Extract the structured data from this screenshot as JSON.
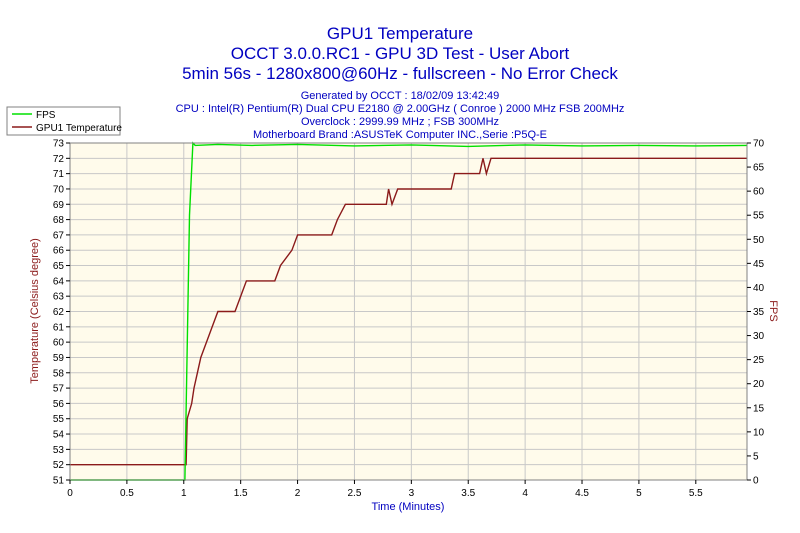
{
  "header": {
    "title_line1": "GPU1 Temperature",
    "title_line2": "OCCT 3.0.0.RC1 - GPU 3D Test - User Abort",
    "title_line3": "5min 56s - 1280x800@60Hz - fullscreen - No Error Check",
    "info_line1": "Generated by OCCT : 18/02/09 13:42:49",
    "info_line2": "CPU : Intel(R) Pentium(R) Dual CPU E2180 @ 2.00GHz ( Conroe ) 2000 MHz FSB 200MHz",
    "info_line3": "Overclock : 2999.99 MHz ; FSB 300MHz",
    "info_line4": "Motherboard Brand :ASUSTeK Computer INC.,Serie :P5Q-E"
  },
  "colors": {
    "plot_background": "#fffbeb",
    "grid": "#c8c8c8",
    "title": "#0000c0",
    "info": "#0000c0",
    "temperature_series": "#8b1a1a",
    "fps_series": "#00e000",
    "left_axis_label": "#8b1a1a",
    "right_axis_label": "#8b1a1a",
    "x_axis_label": "#0000c0",
    "frame": "#808080"
  },
  "chart_data": {
    "type": "line",
    "xlabel": "Time (Minutes)",
    "ylabel_left": "Temperature (Celsius degree)",
    "ylabel_right": "FPS",
    "xlim": [
      0,
      5.95
    ],
    "ylim_left": [
      51,
      73
    ],
    "ylim_right": [
      0,
      70
    ],
    "x_ticks": [
      "0",
      "0.5",
      "1",
      "1.5",
      "2",
      "2.5",
      "3",
      "3.5",
      "4",
      "4.5",
      "5",
      "5.5"
    ],
    "x_tick_values": [
      0,
      0.5,
      1,
      1.5,
      2,
      2.5,
      3,
      3.5,
      4,
      4.5,
      5,
      5.5
    ],
    "y_left_ticks": [
      "51",
      "52",
      "53",
      "54",
      "55",
      "56",
      "57",
      "58",
      "59",
      "60",
      "61",
      "62",
      "63",
      "64",
      "65",
      "66",
      "67",
      "68",
      "69",
      "70",
      "71",
      "72",
      "73"
    ],
    "y_right_ticks": [
      "0",
      "5",
      "10",
      "15",
      "20",
      "25",
      "30",
      "35",
      "40",
      "45",
      "50",
      "55",
      "60",
      "65",
      "70"
    ],
    "grid": true,
    "legend_position": "top-left",
    "legend": [
      "FPS",
      "GPU1 Temperature"
    ],
    "series": [
      {
        "name": "GPU1 Temperature",
        "axis": "left",
        "points": [
          [
            0,
            52
          ],
          [
            1.02,
            52
          ],
          [
            1.03,
            55
          ],
          [
            1.07,
            56
          ],
          [
            1.09,
            57
          ],
          [
            1.12,
            58
          ],
          [
            1.15,
            59
          ],
          [
            1.2,
            60
          ],
          [
            1.25,
            61
          ],
          [
            1.3,
            62
          ],
          [
            1.45,
            62
          ],
          [
            1.5,
            63
          ],
          [
            1.55,
            64
          ],
          [
            1.8,
            64
          ],
          [
            1.85,
            65
          ],
          [
            1.95,
            66
          ],
          [
            2.0,
            67
          ],
          [
            2.3,
            67
          ],
          [
            2.35,
            68
          ],
          [
            2.42,
            69
          ],
          [
            2.78,
            69
          ],
          [
            2.8,
            70
          ],
          [
            2.83,
            69
          ],
          [
            2.88,
            70
          ],
          [
            3.35,
            70
          ],
          [
            3.38,
            71
          ],
          [
            3.6,
            71
          ],
          [
            3.63,
            72
          ],
          [
            3.66,
            71
          ],
          [
            3.7,
            72
          ],
          [
            5.95,
            72
          ]
        ]
      },
      {
        "name": "FPS",
        "axis": "right",
        "points": [
          [
            0,
            0
          ],
          [
            1.01,
            0
          ],
          [
            1.05,
            55
          ],
          [
            1.08,
            70
          ],
          [
            1.1,
            69.5
          ],
          [
            1.3,
            69.7
          ],
          [
            1.6,
            69.5
          ],
          [
            2.0,
            69.7
          ],
          [
            2.5,
            69.4
          ],
          [
            3.0,
            69.6
          ],
          [
            3.5,
            69.3
          ],
          [
            4.0,
            69.6
          ],
          [
            4.5,
            69.4
          ],
          [
            5.0,
            69.5
          ],
          [
            5.5,
            69.4
          ],
          [
            5.95,
            69.5
          ]
        ]
      }
    ]
  }
}
